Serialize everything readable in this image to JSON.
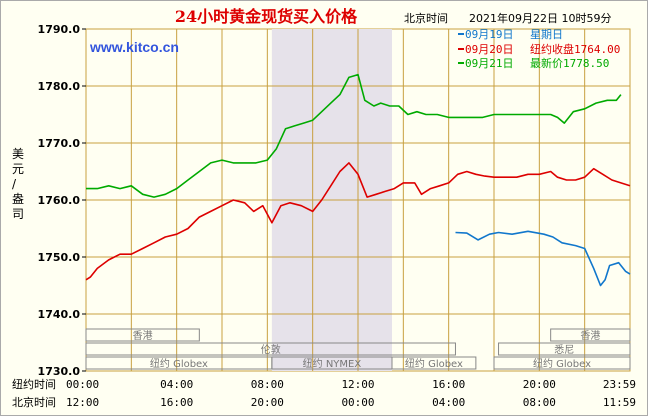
{
  "title": "24小时黄金现货买入价格",
  "timestamp_label": "北京时间",
  "timestamp": "2021年09月22日 10时59分",
  "watermark": "www.kitco.cn",
  "ylabel": "美元/盎司",
  "legend": [
    {
      "date": "09月19日",
      "text": "星期日",
      "color": "#1177cc"
    },
    {
      "date": "09月20日",
      "text": "纽约收盘1764.00",
      "color": "#dd0000"
    },
    {
      "date": "09月21日",
      "text": "最新价1778.50",
      "color": "#00aa00"
    }
  ],
  "axis_row_labels": {
    "ny": "纽约时间",
    "bj": "北京时间"
  },
  "ny_ticks": [
    "00:00",
    "04:00",
    "08:00",
    "12:00",
    "16:00",
    "20:00",
    "23:59"
  ],
  "bj_ticks": [
    "12:00",
    "16:00",
    "20:00",
    "00:00",
    "04:00",
    "08:00",
    "11:59"
  ],
  "sessions": [
    {
      "label": "香港",
      "row": 0,
      "start": 0,
      "end": 5.0
    },
    {
      "label": "伦敦",
      "row": 1,
      "start": 0,
      "end": 16.3
    },
    {
      "label": "纽约 Globex",
      "row": 2,
      "start": 0,
      "end": 8.2
    },
    {
      "label": "纽约 NYMEX",
      "row": 2,
      "start": 8.2,
      "end": 13.5
    },
    {
      "label": "纽约 Globex",
      "row": 2,
      "start": 13.5,
      "end": 17.2
    },
    {
      "label": "香港",
      "row": 0,
      "start": 20.5,
      "end": 24
    },
    {
      "label": "悉尼",
      "row": 1,
      "start": 18.2,
      "end": 24
    },
    {
      "label": "纽约 Globex",
      "row": 2,
      "start": 18.0,
      "end": 24
    }
  ],
  "colors": {
    "red": "#dd0000",
    "green": "#00aa00",
    "blue": "#1177cc",
    "grid": "#c8a040",
    "shade": "#e6e2ea",
    "watermark": "#3355dd"
  },
  "chart_data": {
    "type": "line",
    "ylim": [
      1730,
      1790
    ],
    "yticks": [
      "1790.0",
      "1780.0",
      "1770.0",
      "1760.0",
      "1750.0",
      "1740.0",
      "1730.0"
    ],
    "xlim": [
      0,
      24
    ],
    "shaded_hours": [
      8.2,
      13.5
    ],
    "series": [
      {
        "name": "09月19日",
        "color": "#1177cc",
        "points": [
          [
            16.3,
            1754.3
          ],
          [
            16.8,
            1754.2
          ],
          [
            17.3,
            1753.0
          ],
          [
            17.8,
            1754.0
          ],
          [
            18.2,
            1754.3
          ],
          [
            18.8,
            1754.0
          ],
          [
            19.5,
            1754.5
          ],
          [
            20.2,
            1754.0
          ],
          [
            20.6,
            1753.5
          ],
          [
            21.0,
            1752.5
          ],
          [
            21.6,
            1752.0
          ],
          [
            22.0,
            1751.5
          ],
          [
            22.4,
            1748.0
          ],
          [
            22.7,
            1745.0
          ],
          [
            22.9,
            1746.0
          ],
          [
            23.1,
            1748.5
          ],
          [
            23.5,
            1749.0
          ],
          [
            23.8,
            1747.5
          ],
          [
            24.0,
            1747.0
          ]
        ]
      },
      {
        "name": "09月20日",
        "color": "#dd0000",
        "points": [
          [
            0,
            1746.0
          ],
          [
            0.2,
            1746.5
          ],
          [
            0.5,
            1748.0
          ],
          [
            1.0,
            1749.5
          ],
          [
            1.5,
            1750.5
          ],
          [
            2.0,
            1750.5
          ],
          [
            2.5,
            1751.5
          ],
          [
            3.0,
            1752.5
          ],
          [
            3.5,
            1753.5
          ],
          [
            4.0,
            1754.0
          ],
          [
            4.5,
            1755.0
          ],
          [
            5.0,
            1757.0
          ],
          [
            5.5,
            1758.0
          ],
          [
            6.0,
            1759.0
          ],
          [
            6.5,
            1760.0
          ],
          [
            7.0,
            1759.5
          ],
          [
            7.4,
            1758.0
          ],
          [
            7.8,
            1759.0
          ],
          [
            8.2,
            1756.0
          ],
          [
            8.6,
            1759.0
          ],
          [
            9.0,
            1759.5
          ],
          [
            9.5,
            1759.0
          ],
          [
            10.0,
            1758.0
          ],
          [
            10.4,
            1760.0
          ],
          [
            10.8,
            1762.5
          ],
          [
            11.2,
            1765.0
          ],
          [
            11.6,
            1766.5
          ],
          [
            12.0,
            1764.5
          ],
          [
            12.4,
            1760.5
          ],
          [
            12.8,
            1761.0
          ],
          [
            13.2,
            1761.5
          ],
          [
            13.6,
            1762.0
          ],
          [
            14.0,
            1763.0
          ],
          [
            14.5,
            1763.0
          ],
          [
            14.8,
            1761.0
          ],
          [
            15.2,
            1762.0
          ],
          [
            15.6,
            1762.5
          ],
          [
            16.0,
            1763.0
          ],
          [
            16.4,
            1764.5
          ],
          [
            16.8,
            1765.0
          ],
          [
            17.2,
            1764.5
          ],
          [
            17.6,
            1764.2
          ],
          [
            18.0,
            1764.0
          ],
          [
            18.5,
            1764.0
          ],
          [
            19.0,
            1764.0
          ],
          [
            19.5,
            1764.5
          ],
          [
            20.0,
            1764.5
          ],
          [
            20.5,
            1765.0
          ],
          [
            20.8,
            1764.0
          ],
          [
            21.2,
            1763.5
          ],
          [
            21.6,
            1763.5
          ],
          [
            22.0,
            1764.0
          ],
          [
            22.4,
            1765.5
          ],
          [
            22.8,
            1764.5
          ],
          [
            23.2,
            1763.5
          ],
          [
            23.6,
            1763.0
          ],
          [
            24.0,
            1762.5
          ]
        ]
      },
      {
        "name": "09月21日",
        "color": "#00aa00",
        "points": [
          [
            0,
            1762.0
          ],
          [
            0.5,
            1762.0
          ],
          [
            1.0,
            1762.5
          ],
          [
            1.5,
            1762.0
          ],
          [
            2.0,
            1762.5
          ],
          [
            2.5,
            1761.0
          ],
          [
            3.0,
            1760.5
          ],
          [
            3.5,
            1761.0
          ],
          [
            4.0,
            1762.0
          ],
          [
            4.5,
            1763.5
          ],
          [
            5.0,
            1765.0
          ],
          [
            5.5,
            1766.5
          ],
          [
            6.0,
            1767.0
          ],
          [
            6.5,
            1766.5
          ],
          [
            7.0,
            1766.5
          ],
          [
            7.5,
            1766.5
          ],
          [
            8.0,
            1767.0
          ],
          [
            8.4,
            1769.0
          ],
          [
            8.8,
            1772.5
          ],
          [
            9.2,
            1773.0
          ],
          [
            9.6,
            1773.5
          ],
          [
            10.0,
            1774.0
          ],
          [
            10.4,
            1775.5
          ],
          [
            10.8,
            1777.0
          ],
          [
            11.2,
            1778.5
          ],
          [
            11.6,
            1781.5
          ],
          [
            12.0,
            1782.0
          ],
          [
            12.3,
            1777.5
          ],
          [
            12.7,
            1776.5
          ],
          [
            13.0,
            1777.0
          ],
          [
            13.4,
            1776.5
          ],
          [
            13.8,
            1776.5
          ],
          [
            14.2,
            1775.0
          ],
          [
            14.6,
            1775.5
          ],
          [
            15.0,
            1775.0
          ],
          [
            15.5,
            1775.0
          ],
          [
            16.0,
            1774.5
          ],
          [
            16.5,
            1774.5
          ],
          [
            17.0,
            1774.5
          ],
          [
            17.5,
            1774.5
          ],
          [
            18.0,
            1775.0
          ],
          [
            18.5,
            1775.0
          ],
          [
            19.0,
            1775.0
          ],
          [
            19.5,
            1775.0
          ],
          [
            20.0,
            1775.0
          ],
          [
            20.5,
            1775.0
          ],
          [
            20.8,
            1774.5
          ],
          [
            21.1,
            1773.5
          ],
          [
            21.5,
            1775.5
          ],
          [
            22.0,
            1776.0
          ],
          [
            22.5,
            1777.0
          ],
          [
            23.0,
            1777.5
          ],
          [
            23.4,
            1777.5
          ],
          [
            23.6,
            1778.5
          ]
        ]
      }
    ]
  }
}
